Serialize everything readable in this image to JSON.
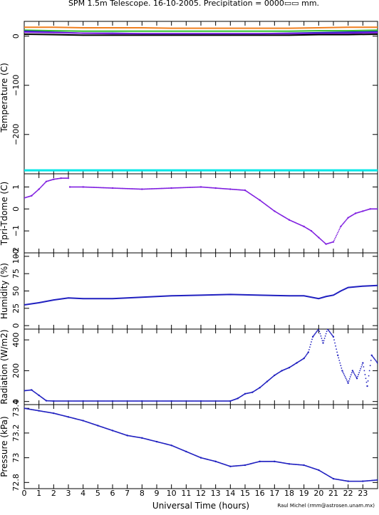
{
  "title": "SPM 1.5m Telescope.  16-10-2005.  Precipitation = 0000▭▭ mm.",
  "credit": "Raul Michel  (rmm@astrosen.unam.mx)",
  "xlabel": "Universal Time (hours)",
  "xlim": [
    0,
    24
  ],
  "xticks": [
    "0",
    "1",
    "2",
    "3",
    "4",
    "5",
    "6",
    "7",
    "8",
    "9",
    "10",
    "11",
    "12",
    "13",
    "14",
    "15",
    "16",
    "17",
    "18",
    "19",
    "20",
    "21",
    "22",
    "23"
  ],
  "colors": {
    "orange": "#f08020",
    "green": "#30c030",
    "blue": "#2020c0",
    "purple": "#8020e0",
    "cyan": "#00e8e8",
    "black": "#000000"
  },
  "chart_data": [
    {
      "type": "line",
      "ylabel": "Temperature (C)",
      "ylim": [
        -280,
        30
      ],
      "yticks": [
        0,
        -100,
        -200
      ],
      "ytick_labels": [
        "0",
        "−100",
        "−200"
      ],
      "x": [
        0,
        2,
        4,
        6,
        8,
        10,
        12,
        14,
        16,
        18,
        20,
        22,
        24
      ],
      "series": [
        {
          "color": "orange",
          "values": [
            18,
            18,
            17,
            17,
            17,
            16,
            16,
            16,
            16,
            16,
            17,
            18,
            18
          ]
        },
        {
          "color": "green",
          "values": [
            12,
            11,
            10,
            10,
            10,
            10,
            10,
            10,
            10,
            10,
            11,
            11,
            12
          ]
        },
        {
          "color": "blue",
          "values": [
            10,
            8,
            6,
            6,
            5,
            5,
            5,
            5,
            5,
            6,
            7,
            8,
            9
          ]
        },
        {
          "color": "purple",
          "values": [
            8,
            7,
            6,
            5,
            5,
            5,
            5,
            5,
            5,
            5,
            5,
            6,
            7
          ]
        },
        {
          "color": "black",
          "values": [
            4,
            3,
            2,
            2,
            2,
            2,
            2,
            2,
            2,
            2,
            3,
            3,
            4
          ]
        },
        {
          "color": "cyan",
          "values": [
            -273,
            -273,
            -273,
            -273,
            -273,
            -273,
            -273,
            -273,
            -273,
            -273,
            -273,
            -273,
            -273
          ]
        }
      ]
    },
    {
      "type": "scatter",
      "ylabel": "Tpri-Tdome (C)",
      "ylim": [
        -2,
        1.6
      ],
      "yticks": [
        1,
        0,
        -1,
        -2
      ],
      "ytick_labels": [
        "1",
        "0",
        "−1",
        "−2"
      ],
      "x": [
        0,
        0.5,
        1,
        1.5,
        2,
        2.5,
        3,
        3.1,
        4,
        6,
        8,
        10,
        12,
        13,
        14,
        15,
        16,
        17,
        18,
        19,
        19.5,
        20,
        20.5,
        21,
        21.5,
        22,
        22.5,
        23,
        23.5,
        24
      ],
      "series": [
        {
          "color": "purple",
          "values": [
            0.5,
            0.6,
            0.9,
            1.25,
            1.35,
            1.4,
            1.4,
            1.0,
            1.0,
            0.95,
            0.9,
            0.95,
            1.0,
            0.95,
            0.9,
            0.85,
            0.4,
            -0.1,
            -0.5,
            -0.8,
            -1.0,
            -1.3,
            -1.6,
            -1.5,
            -0.8,
            -0.4,
            -0.2,
            -0.1,
            0.0,
            0.0
          ]
        }
      ]
    },
    {
      "type": "line",
      "ylabel": "Humidity (%)",
      "ylim": [
        -5,
        105
      ],
      "yticks": [
        0,
        25,
        50,
        75,
        100
      ],
      "ytick_labels": [
        "0",
        "25",
        "50",
        "75",
        "100"
      ],
      "x": [
        0,
        1,
        2,
        3,
        4,
        6,
        8,
        10,
        12,
        14,
        16,
        18,
        19,
        20,
        20.5,
        21,
        21.5,
        22,
        23,
        24
      ],
      "series": [
        {
          "color": "blue",
          "values": [
            30,
            33,
            37,
            40,
            39,
            39,
            41,
            43,
            44,
            45,
            44,
            43,
            43,
            39,
            42,
            44,
            50,
            55,
            57,
            58
          ]
        }
      ]
    },
    {
      "type": "scatter",
      "ylabel": "Radiation (W/m2)",
      "ylim": [
        -20,
        470
      ],
      "yticks": [
        0,
        200,
        400
      ],
      "ytick_labels": [
        "0",
        "200",
        "400"
      ],
      "x": [
        0,
        0.5,
        1,
        1.5,
        2,
        4,
        6,
        8,
        10,
        12,
        14,
        14.5,
        15,
        15.5,
        16,
        16.5,
        17,
        17.5,
        18,
        18.5,
        19,
        19.3,
        19.6,
        20,
        20.3,
        20.6,
        21,
        21.3,
        21.6,
        22,
        22.3,
        22.6,
        23,
        23.3,
        23.6,
        24
      ],
      "series": [
        {
          "color": "blue",
          "values": [
            70,
            75,
            40,
            5,
            3,
            3,
            3,
            3,
            3,
            3,
            3,
            20,
            50,
            60,
            90,
            130,
            170,
            200,
            220,
            250,
            280,
            320,
            420,
            470,
            380,
            470,
            420,
            300,
            200,
            120,
            200,
            150,
            250,
            100,
            300,
            250
          ]
        }
      ]
    },
    {
      "type": "scatter",
      "ylabel": "Pressure (kPa)",
      "ylim": [
        72.75,
        73.43
      ],
      "yticks": [
        72.8,
        73,
        73.2,
        73.4
      ],
      "ytick_labels": [
        "72.8",
        "73",
        "73.2",
        "73.4"
      ],
      "x": [
        0,
        1,
        2,
        3,
        4,
        5,
        6,
        7,
        8,
        9,
        10,
        11,
        12,
        13,
        14,
        15,
        16,
        17,
        18,
        19,
        20,
        21,
        22,
        23,
        24
      ],
      "series": [
        {
          "color": "blue",
          "values": [
            73.4,
            73.38,
            73.36,
            73.33,
            73.3,
            73.26,
            73.22,
            73.18,
            73.16,
            73.13,
            73.1,
            73.05,
            73.0,
            72.97,
            72.93,
            72.94,
            72.97,
            72.97,
            72.95,
            72.94,
            72.9,
            72.83,
            72.81,
            72.81,
            72.82
          ]
        }
      ]
    }
  ]
}
